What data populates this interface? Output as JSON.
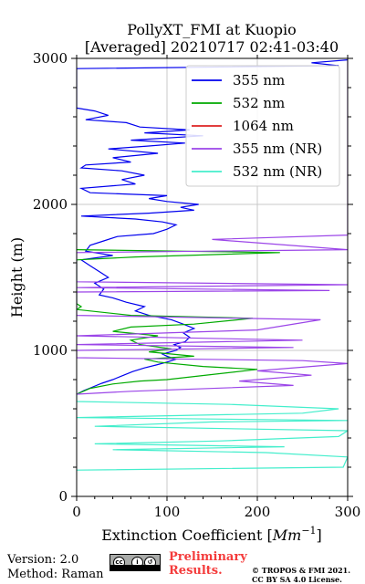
{
  "chart_data": {
    "type": "line",
    "title": "PollyXT_FMI at Kuopio",
    "subtitle": "[Averaged] 20210717 02:41-03:40",
    "xlabel": "Extinction Coefficient [",
    "xlabel_unit": "Mm",
    "xlabel_exp": "−1",
    "xlabel_end": "]",
    "ylabel": "Height (m)",
    "xlim": [
      0,
      300
    ],
    "ylim": [
      0,
      3000
    ],
    "xticks": [
      0,
      100,
      200,
      300
    ],
    "xtick_labels": [
      "0",
      "100",
      "200",
      "300"
    ],
    "yticks": [
      0,
      1000,
      2000,
      3000
    ],
    "ytick_labels": [
      "0",
      "1000",
      "2000",
      "3000"
    ],
    "grid": true,
    "legend_position": "top-right",
    "series": [
      {
        "name": "355 nm",
        "color": "#0000ee",
        "points": [
          [
            0,
            700
          ],
          [
            8,
            725
          ],
          [
            18,
            750
          ],
          [
            28,
            775
          ],
          [
            40,
            800
          ],
          [
            52,
            830
          ],
          [
            62,
            855
          ],
          [
            75,
            880
          ],
          [
            88,
            900
          ],
          [
            100,
            920
          ],
          [
            110,
            940
          ],
          [
            100,
            960
          ],
          [
            95,
            975
          ],
          [
            110,
            1000
          ],
          [
            115,
            1020
          ],
          [
            108,
            1040
          ],
          [
            120,
            1060
          ],
          [
            125,
            1090
          ],
          [
            118,
            1120
          ],
          [
            130,
            1150
          ],
          [
            118,
            1180
          ],
          [
            105,
            1210
          ],
          [
            80,
            1240
          ],
          [
            65,
            1270
          ],
          [
            75,
            1300
          ],
          [
            55,
            1330
          ],
          [
            40,
            1360
          ],
          [
            25,
            1380
          ],
          [
            30,
            1420
          ],
          [
            20,
            1460
          ],
          [
            35,
            1500
          ],
          [
            25,
            1540
          ],
          [
            15,
            1580
          ],
          [
            5,
            1620
          ],
          [
            40,
            1650
          ],
          [
            10,
            1680
          ],
          [
            15,
            1720
          ],
          [
            30,
            1750
          ],
          [
            45,
            1780
          ],
          [
            85,
            1800
          ],
          [
            100,
            1830
          ],
          [
            110,
            1860
          ],
          [
            95,
            1880
          ],
          [
            65,
            1900
          ],
          [
            5,
            1920
          ],
          [
            80,
            1940
          ],
          [
            130,
            1960
          ],
          [
            115,
            1980
          ],
          [
            135,
            2000
          ],
          [
            100,
            2020
          ],
          [
            80,
            2040
          ],
          [
            100,
            2060
          ],
          [
            15,
            2080
          ],
          [
            5,
            2110
          ],
          [
            65,
            2140
          ],
          [
            50,
            2170
          ],
          [
            75,
            2200
          ],
          [
            50,
            2230
          ],
          [
            5,
            2250
          ],
          [
            10,
            2270
          ],
          [
            60,
            2290
          ],
          [
            40,
            2320
          ],
          [
            90,
            2350
          ],
          [
            35,
            2380
          ],
          [
            80,
            2400
          ],
          [
            120,
            2420
          ],
          [
            60,
            2440
          ],
          [
            140,
            2470
          ],
          [
            75,
            2490
          ],
          [
            125,
            2510
          ],
          [
            70,
            2530
          ],
          [
            55,
            2560
          ],
          [
            10,
            2580
          ],
          [
            35,
            2610
          ],
          [
            20,
            2640
          ],
          [
            0,
            2660
          ],
          [
            0,
            2930
          ],
          [
            290,
            2950
          ],
          [
            260,
            2970
          ],
          [
            300,
            2990
          ]
        ]
      },
      {
        "name": "532 nm",
        "color": "#00aa00",
        "points": [
          [
            0,
            700
          ],
          [
            15,
            740
          ],
          [
            40,
            770
          ],
          [
            70,
            790
          ],
          [
            100,
            800
          ],
          [
            200,
            870
          ],
          [
            140,
            890
          ],
          [
            90,
            920
          ],
          [
            75,
            940
          ],
          [
            130,
            960
          ],
          [
            80,
            990
          ],
          [
            105,
            1010
          ],
          [
            70,
            1040
          ],
          [
            60,
            1070
          ],
          [
            90,
            1100
          ],
          [
            40,
            1130
          ],
          [
            60,
            1160
          ],
          [
            130,
            1180
          ],
          [
            195,
            1220
          ],
          [
            60,
            1240
          ],
          [
            0,
            1280
          ],
          [
            5,
            1300
          ],
          [
            0,
            1320
          ],
          [
            0,
            1620
          ],
          [
            65,
            1640
          ],
          [
            225,
            1670
          ],
          [
            0,
            1690
          ]
        ]
      },
      {
        "name": "1064 nm",
        "color": "#dd2222",
        "points": []
      },
      {
        "name": "355 nm (NR)",
        "color": "#9b45e8",
        "points": [
          [
            0,
            700
          ],
          [
            60,
            720
          ],
          [
            240,
            760
          ],
          [
            180,
            790
          ],
          [
            260,
            830
          ],
          [
            200,
            860
          ],
          [
            300,
            910
          ],
          [
            250,
            930
          ],
          [
            0,
            950
          ],
          [
            0,
            1000
          ],
          [
            240,
            1020
          ],
          [
            0,
            1040
          ],
          [
            250,
            1070
          ],
          [
            0,
            1100
          ],
          [
            200,
            1140
          ],
          [
            270,
            1210
          ],
          [
            0,
            1240
          ],
          [
            0,
            1400
          ],
          [
            280,
            1410
          ],
          [
            0,
            1430
          ],
          [
            300,
            1450
          ],
          [
            0,
            1470
          ],
          [
            0,
            1670
          ],
          [
            300,
            1690
          ],
          [
            150,
            1760
          ],
          [
            300,
            1790
          ],
          [
            300,
            2990
          ]
        ]
      },
      {
        "name": "532 nm (NR)",
        "color": "#44eecc",
        "points": [
          [
            0,
            180
          ],
          [
            295,
            200
          ],
          [
            300,
            270
          ],
          [
            210,
            300
          ],
          [
            40,
            320
          ],
          [
            230,
            340
          ],
          [
            20,
            360
          ],
          [
            160,
            380
          ],
          [
            290,
            410
          ],
          [
            300,
            450
          ],
          [
            20,
            480
          ],
          [
            150,
            510
          ],
          [
            300,
            520
          ],
          [
            0,
            540
          ],
          [
            250,
            570
          ],
          [
            290,
            600
          ],
          [
            170,
            630
          ],
          [
            0,
            650
          ],
          [
            0,
            700
          ]
        ]
      }
    ]
  },
  "footer": {
    "version": "Version: 2.0",
    "method": "Method: Raman",
    "license_badge_text": "BY  SA",
    "preliminary_line1": "Preliminary",
    "preliminary_line2": "Results.",
    "copyright_line1": "© TROPOS & FMI 2021.",
    "copyright_line2": "CC BY SA 4.0 License."
  }
}
